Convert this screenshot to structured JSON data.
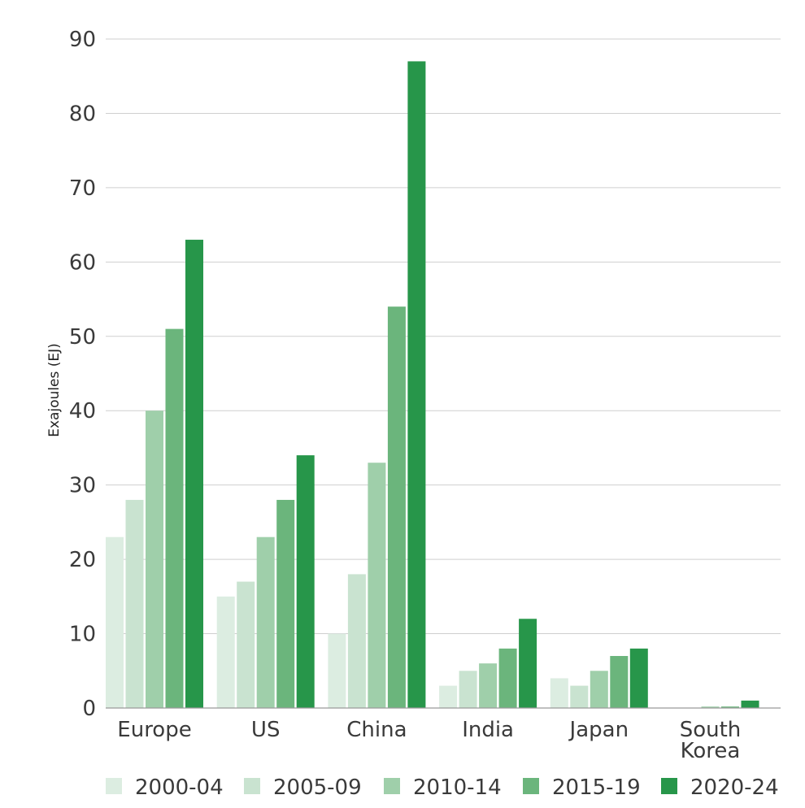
{
  "chart_data": {
    "type": "bar",
    "title": "",
    "xlabel": "",
    "ylabel": "Exajoules (EJ)",
    "ylim": [
      0,
      90
    ],
    "yticks": [
      0,
      10,
      20,
      30,
      40,
      50,
      60,
      70,
      80,
      90
    ],
    "grid": true,
    "legend_position": "bottom",
    "categories": [
      [
        "Europe"
      ],
      [
        "US"
      ],
      [
        "China"
      ],
      [
        "India"
      ],
      [
        "Japan"
      ],
      [
        "South",
        "Korea"
      ]
    ],
    "series": [
      {
        "name": "2000-04",
        "color": "#dcede1",
        "values": [
          23,
          15,
          10,
          3,
          4,
          0
        ]
      },
      {
        "name": "2005-09",
        "color": "#c9e3d0",
        "values": [
          28,
          17,
          18,
          5,
          3,
          0
        ]
      },
      {
        "name": "2010-14",
        "color": "#9fcfaa",
        "values": [
          40,
          23,
          33,
          6,
          5,
          0.2
        ]
      },
      {
        "name": "2015-19",
        "color": "#6bb57c",
        "values": [
          51,
          28,
          54,
          8,
          7,
          0.2
        ]
      },
      {
        "name": "2020-24",
        "color": "#27964a",
        "values": [
          63,
          34,
          87,
          12,
          8,
          1
        ]
      }
    ]
  }
}
